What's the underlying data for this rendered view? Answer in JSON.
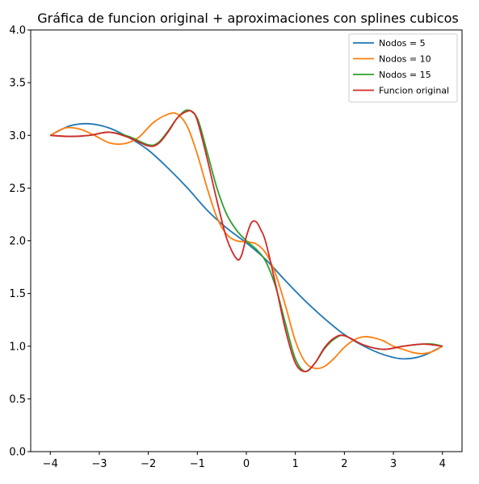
{
  "chart_data": {
    "type": "line",
    "title": "Gráfica de funcion original + aproximaciones con splines cubicos",
    "xlabel": "",
    "ylabel": "",
    "xlim": [
      -4.4,
      4.4
    ],
    "ylim": [
      0.0,
      4.0
    ],
    "xticks": [
      -4,
      -3,
      -2,
      -1,
      0,
      1,
      2,
      3,
      4
    ],
    "xtick_labels": [
      "−4",
      "−3",
      "−2",
      "−1",
      "0",
      "1",
      "2",
      "3",
      "4"
    ],
    "yticks": [
      0.0,
      0.5,
      1.0,
      1.5,
      2.0,
      2.5,
      3.0,
      3.5,
      4.0
    ],
    "ytick_labels": [
      "0.0",
      "0.5",
      "1.0",
      "1.5",
      "2.0",
      "2.5",
      "3.0",
      "3.5",
      "4.0"
    ],
    "grid": false,
    "legend_position": "top-right",
    "series": [
      {
        "name": "Nodos = 5",
        "color": "#1f77b4",
        "x": [
          -4,
          -3.6,
          -3.2,
          -2.8,
          -2.4,
          -2.0,
          -1.6,
          -1.2,
          -0.8,
          -0.4,
          0.0,
          0.4,
          0.8,
          1.2,
          1.6,
          2.0,
          2.4,
          2.8,
          3.2,
          3.6,
          4.0
        ],
        "y": [
          3.0,
          3.09,
          3.11,
          3.07,
          2.98,
          2.86,
          2.69,
          2.5,
          2.29,
          2.12,
          1.98,
          1.82,
          1.62,
          1.43,
          1.26,
          1.11,
          1.0,
          0.92,
          0.88,
          0.91,
          1.0
        ]
      },
      {
        "name": "Nodos = 10",
        "color": "#ff7f0e",
        "x": [
          -4,
          -3.7,
          -3.4,
          -3.1,
          -2.8,
          -2.5,
          -2.2,
          -1.9,
          -1.6,
          -1.4,
          -1.2,
          -1.0,
          -0.8,
          -0.6,
          -0.4,
          -0.2,
          0.0,
          0.2,
          0.4,
          0.6,
          0.8,
          1.0,
          1.2,
          1.4,
          1.6,
          1.8,
          2.0,
          2.2,
          2.4,
          2.6,
          2.8,
          3.0,
          3.2,
          3.4,
          3.6,
          3.8,
          4.0
        ],
        "y": [
          3.0,
          3.07,
          3.06,
          3.0,
          2.93,
          2.92,
          2.98,
          3.12,
          3.2,
          3.2,
          3.08,
          2.82,
          2.5,
          2.22,
          2.06,
          2.0,
          1.99,
          1.97,
          1.88,
          1.68,
          1.38,
          1.05,
          0.85,
          0.79,
          0.81,
          0.89,
          0.99,
          1.06,
          1.09,
          1.08,
          1.05,
          1.0,
          0.97,
          0.94,
          0.93,
          0.95,
          1.0
        ]
      },
      {
        "name": "Nodos = 15",
        "color": "#2ca02c",
        "x": [
          -4,
          -3.6,
          -3.2,
          -2.8,
          -2.4,
          -2.0,
          -1.8,
          -1.6,
          -1.4,
          -1.2,
          -1.0,
          -0.8,
          -0.6,
          -0.4,
          -0.2,
          0.0,
          0.2,
          0.4,
          0.6,
          0.8,
          1.0,
          1.2,
          1.4,
          1.6,
          1.8,
          2.0,
          2.4,
          2.8,
          3.2,
          3.6,
          3.8,
          4.0
        ],
        "y": [
          3.0,
          2.99,
          3.0,
          3.03,
          2.99,
          2.91,
          2.93,
          3.04,
          3.17,
          3.24,
          3.16,
          2.84,
          2.5,
          2.25,
          2.1,
          2.0,
          1.92,
          1.8,
          1.56,
          1.21,
          0.88,
          0.76,
          0.84,
          0.98,
          1.07,
          1.1,
          1.01,
          0.97,
          1.0,
          1.02,
          1.02,
          1.0
        ]
      },
      {
        "name": "Funcion original",
        "color": "#d62728",
        "x": [
          -4,
          -3.6,
          -3.2,
          -2.8,
          -2.4,
          -2.0,
          -1.8,
          -1.6,
          -1.4,
          -1.2,
          -1.1,
          -1.0,
          -0.8,
          -0.6,
          -0.4,
          -0.2,
          -0.1,
          0.0,
          0.1,
          0.2,
          0.3,
          0.4,
          0.6,
          0.8,
          1.0,
          1.2,
          1.4,
          1.6,
          1.8,
          2.0,
          2.4,
          2.8,
          3.2,
          3.6,
          4.0
        ],
        "y": [
          3.0,
          2.99,
          3.0,
          3.03,
          2.98,
          2.9,
          2.92,
          3.03,
          3.17,
          3.23,
          3.22,
          3.14,
          2.78,
          2.38,
          2.02,
          1.83,
          1.86,
          2.04,
          2.17,
          2.18,
          2.1,
          1.98,
          1.58,
          1.15,
          0.84,
          0.76,
          0.84,
          0.99,
          1.08,
          1.1,
          1.01,
          0.97,
          1.0,
          1.02,
          1.0
        ]
      }
    ]
  }
}
